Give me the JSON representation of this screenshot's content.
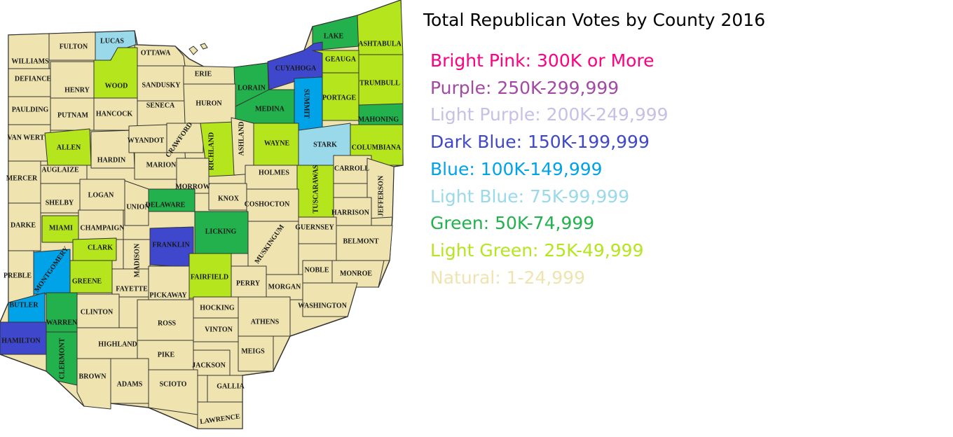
{
  "title": "Total Republican Votes by County 2016",
  "colors": {
    "natural": "#efe4b0",
    "light_green": "#b5e61d",
    "green": "#22b14c",
    "light_blue": "#99d9ea",
    "blue": "#00a2e8",
    "dark_blue": "#3f48cc",
    "border": "#333333",
    "water": "#ffffff"
  },
  "legend": [
    {
      "label": "Bright Pink: 300K or More",
      "color": "#ff0080"
    },
    {
      "label": "Purple: 250K-299,999",
      "color": "#a349a4"
    },
    {
      "label": "Light Purple: 200K-249,999",
      "color": "#c8bfe7"
    },
    {
      "label": "Dark Blue: 150K-199,999",
      "color": "#3f48cc"
    },
    {
      "label": "Blue: 100K-149,999",
      "color": "#00a2e8"
    },
    {
      "label": "Light Blue: 75K-99,999",
      "color": "#99d9ea"
    },
    {
      "label": "Green: 50K-74,999",
      "color": "#22b14c"
    },
    {
      "label": "Light Green: 25K-49,999",
      "color": "#b5e61d"
    },
    {
      "label": "Natural: 1-24,999",
      "color": "#efe4b0"
    }
  ],
  "counties": [
    {
      "name": "WILLIAMS",
      "tier": "natural"
    },
    {
      "name": "FULTON",
      "tier": "natural"
    },
    {
      "name": "LUCAS",
      "tier": "light_blue"
    },
    {
      "name": "OTTAWA",
      "tier": "natural"
    },
    {
      "name": "LAKE",
      "tier": "green"
    },
    {
      "name": "ASHTABULA",
      "tier": "light_green"
    },
    {
      "name": "DEFIANCE",
      "tier": "natural"
    },
    {
      "name": "HENRY",
      "tier": "natural"
    },
    {
      "name": "WOOD",
      "tier": "light_green"
    },
    {
      "name": "SANDUSKY",
      "tier": "natural"
    },
    {
      "name": "ERIE",
      "tier": "natural"
    },
    {
      "name": "LORAIN",
      "tier": "green"
    },
    {
      "name": "CUYAHOGA",
      "tier": "dark_blue"
    },
    {
      "name": "GEAUGA",
      "tier": "light_green"
    },
    {
      "name": "TRUMBULL",
      "tier": "light_green"
    },
    {
      "name": "PAULDING",
      "tier": "natural"
    },
    {
      "name": "PUTNAM",
      "tier": "natural"
    },
    {
      "name": "HANCOCK",
      "tier": "natural"
    },
    {
      "name": "SENECA",
      "tier": "natural"
    },
    {
      "name": "HURON",
      "tier": "natural"
    },
    {
      "name": "MEDINA",
      "tier": "green"
    },
    {
      "name": "SUMMIT",
      "tier": "blue"
    },
    {
      "name": "PORTAGE",
      "tier": "light_green"
    },
    {
      "name": "MAHONING",
      "tier": "green"
    },
    {
      "name": "VAN WERT",
      "tier": "natural"
    },
    {
      "name": "ALLEN",
      "tier": "light_green"
    },
    {
      "name": "HARDIN",
      "tier": "natural"
    },
    {
      "name": "WYANDOT",
      "tier": "natural"
    },
    {
      "name": "CRAWFORD",
      "tier": "natural"
    },
    {
      "name": "RICHLAND",
      "tier": "light_green"
    },
    {
      "name": "ASHLAND",
      "tier": "natural"
    },
    {
      "name": "WAYNE",
      "tier": "light_green"
    },
    {
      "name": "STARK",
      "tier": "light_blue"
    },
    {
      "name": "COLUMBIANA",
      "tier": "light_green"
    },
    {
      "name": "MERCER",
      "tier": "natural"
    },
    {
      "name": "AUGLAIZE",
      "tier": "natural"
    },
    {
      "name": "MARION",
      "tier": "natural"
    },
    {
      "name": "MORROW",
      "tier": "natural"
    },
    {
      "name": "HOLMES",
      "tier": "natural"
    },
    {
      "name": "TUSCARAWAS",
      "tier": "light_green"
    },
    {
      "name": "CARROLL",
      "tier": "natural"
    },
    {
      "name": "JEFFERSON",
      "tier": "natural"
    },
    {
      "name": "SHELBY",
      "tier": "natural"
    },
    {
      "name": "LOGAN",
      "tier": "natural"
    },
    {
      "name": "UNION",
      "tier": "natural"
    },
    {
      "name": "DELAWARE",
      "tier": "green"
    },
    {
      "name": "KNOX",
      "tier": "natural"
    },
    {
      "name": "COSHOCTON",
      "tier": "natural"
    },
    {
      "name": "HARRISON",
      "tier": "natural"
    },
    {
      "name": "DARKE",
      "tier": "natural"
    },
    {
      "name": "MIAMI",
      "tier": "light_green"
    },
    {
      "name": "CHAMPAIGN",
      "tier": "natural"
    },
    {
      "name": "LICKING",
      "tier": "green"
    },
    {
      "name": "MUSKINGUM",
      "tier": "natural"
    },
    {
      "name": "GUERNSEY",
      "tier": "natural"
    },
    {
      "name": "BELMONT",
      "tier": "natural"
    },
    {
      "name": "CLARK",
      "tier": "light_green"
    },
    {
      "name": "MADISON",
      "tier": "natural"
    },
    {
      "name": "FRANKLIN",
      "tier": "dark_blue"
    },
    {
      "name": "PREBLE",
      "tier": "natural"
    },
    {
      "name": "MONTGOMERY",
      "tier": "blue"
    },
    {
      "name": "GREENE",
      "tier": "light_green"
    },
    {
      "name": "FAYETTE",
      "tier": "natural"
    },
    {
      "name": "PICKAWAY",
      "tier": "natural"
    },
    {
      "name": "FAIRFIELD",
      "tier": "light_green"
    },
    {
      "name": "PERRY",
      "tier": "natural"
    },
    {
      "name": "MORGAN",
      "tier": "natural"
    },
    {
      "name": "NOBLE",
      "tier": "natural"
    },
    {
      "name": "MONROE",
      "tier": "natural"
    },
    {
      "name": "WASHINGTON",
      "tier": "natural"
    },
    {
      "name": "BUTLER",
      "tier": "blue"
    },
    {
      "name": "WARREN",
      "tier": "green"
    },
    {
      "name": "CLINTON",
      "tier": "natural"
    },
    {
      "name": "HOCKING",
      "tier": "natural"
    },
    {
      "name": "ROSS",
      "tier": "natural"
    },
    {
      "name": "ATHENS",
      "tier": "natural"
    },
    {
      "name": "VINTON",
      "tier": "natural"
    },
    {
      "name": "HAMILTON",
      "tier": "dark_blue"
    },
    {
      "name": "CLERMONT",
      "tier": "green"
    },
    {
      "name": "HIGHLAND",
      "tier": "natural"
    },
    {
      "name": "PIKE",
      "tier": "natural"
    },
    {
      "name": "MEIGS",
      "tier": "natural"
    },
    {
      "name": "JACKSON",
      "tier": "natural"
    },
    {
      "name": "BROWN",
      "tier": "natural"
    },
    {
      "name": "ADAMS",
      "tier": "natural"
    },
    {
      "name": "SCIOTO",
      "tier": "natural"
    },
    {
      "name": "GALLIA",
      "tier": "natural"
    },
    {
      "name": "LAWRENCE",
      "tier": "natural"
    }
  ]
}
